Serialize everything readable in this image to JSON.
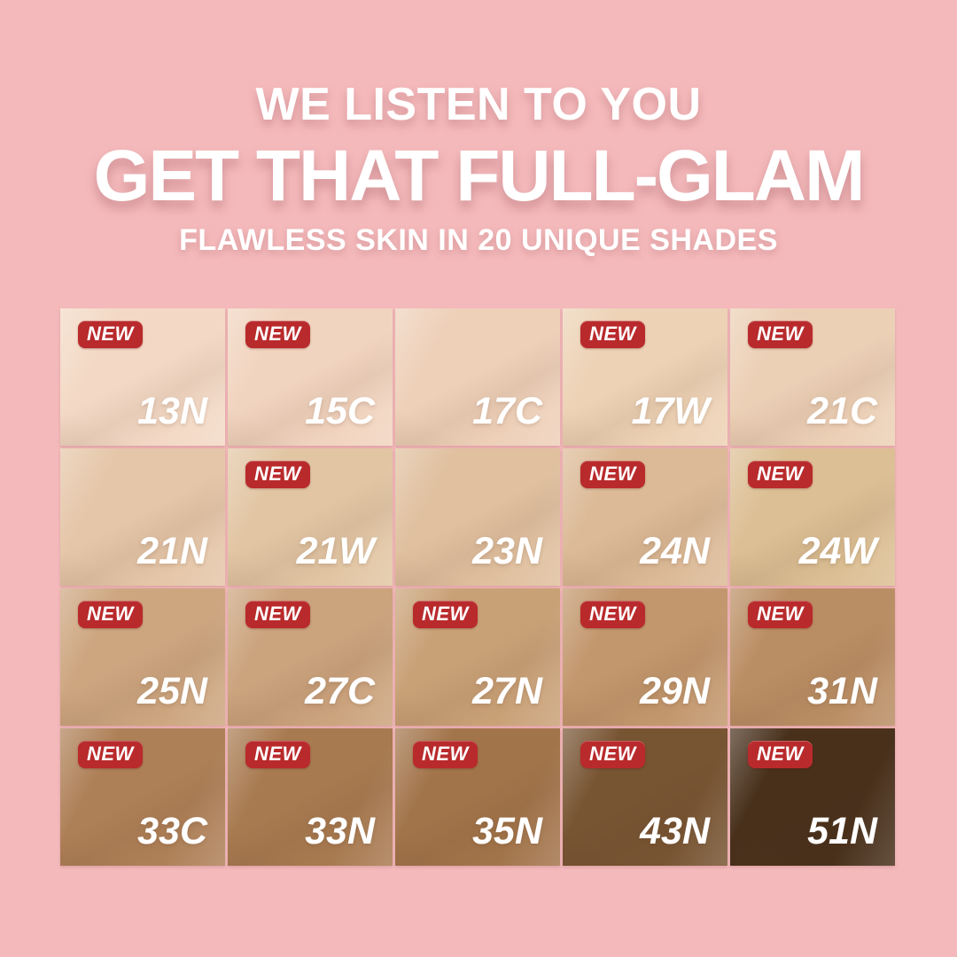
{
  "page": {
    "background": "#f4b9bb"
  },
  "header": {
    "kicker": "WE LISTEN TO YOU",
    "title": "GET THAT FULL-GLAM",
    "subtitle": "FLAWLESS SKIN IN 20 UNIQUE SHADES"
  },
  "badge": {
    "label": "NEW",
    "background": "#b92a2c",
    "text_color": "#ffffff"
  },
  "grid": {
    "columns": 5,
    "rows": 4,
    "shade_count": 20
  },
  "shades": [
    {
      "code": "13N",
      "color": "#f3d9c5",
      "is_new": true
    },
    {
      "code": "15C",
      "color": "#f1d4bf",
      "is_new": true
    },
    {
      "code": "17C",
      "color": "#eed0b9",
      "is_new": false
    },
    {
      "code": "17W",
      "color": "#edd2b5",
      "is_new": true
    },
    {
      "code": "21C",
      "color": "#ecd0b6",
      "is_new": true
    },
    {
      "code": "21N",
      "color": "#e5c6a8",
      "is_new": false
    },
    {
      "code": "21W",
      "color": "#e2c6a4",
      "is_new": true
    },
    {
      "code": "23N",
      "color": "#e0c09f",
      "is_new": false
    },
    {
      "code": "24N",
      "color": "#dcba97",
      "is_new": true
    },
    {
      "code": "24W",
      "color": "#dcbf94",
      "is_new": true
    },
    {
      "code": "25N",
      "color": "#cda680",
      "is_new": true
    },
    {
      "code": "27C",
      "color": "#cba37d",
      "is_new": true
    },
    {
      "code": "27N",
      "color": "#c9a177",
      "is_new": true
    },
    {
      "code": "29N",
      "color": "#c2976d",
      "is_new": true
    },
    {
      "code": "31N",
      "color": "#ba8e64",
      "is_new": true
    },
    {
      "code": "33C",
      "color": "#ae8057",
      "is_new": true
    },
    {
      "code": "33N",
      "color": "#a87a50",
      "is_new": true
    },
    {
      "code": "35N",
      "color": "#a2744a",
      "is_new": true
    },
    {
      "code": "43N",
      "color": "#775432",
      "is_new": true
    },
    {
      "code": "51N",
      "color": "#48301b",
      "is_new": true
    }
  ]
}
